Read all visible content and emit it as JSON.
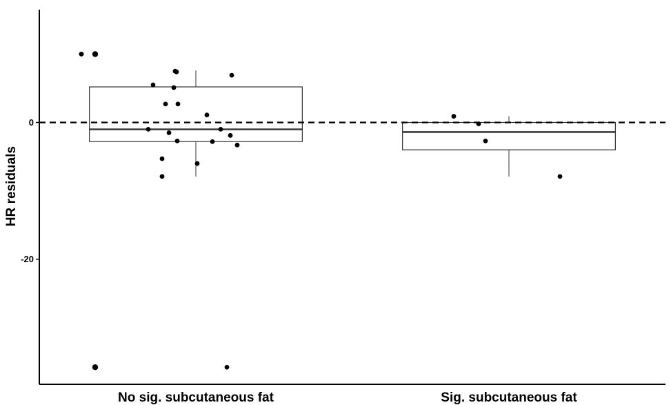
{
  "chart_data": {
    "type": "box",
    "ylabel": "HR residuals",
    "xlabel": "",
    "ylim": [
      -38.3,
      16.5
    ],
    "yticks": [
      0,
      -20
    ],
    "ytick_labels": [
      "0",
      "-20"
    ],
    "reference_line": 0,
    "grid": false,
    "legend": "none",
    "categories": [
      "No sig. subcutaneous fat",
      "Sig. subcutaneous fat"
    ],
    "boxes": [
      {
        "category": "No sig. subcutaneous fat",
        "min": -7.9,
        "q1": -2.8,
        "median": -1.0,
        "q3": 5.2,
        "max": 7.6,
        "outliers": [
          10.0,
          -35.8
        ]
      },
      {
        "category": "Sig. subcutaneous fat",
        "min": -7.9,
        "q1": -4.0,
        "median": -1.4,
        "q3": 0.0,
        "max": 0.9,
        "outliers": []
      }
    ],
    "points": [
      {
        "category": "No sig. subcutaneous fat",
        "values": [
          10.0,
          10.0,
          7.5,
          7.4,
          6.9,
          5.5,
          5.1,
          2.7,
          2.7,
          1.1,
          -1.0,
          -1.5,
          -1.0,
          -2.7,
          -1.9,
          -2.8,
          -3.3,
          -5.3,
          -6.0,
          -7.9,
          -35.8
        ]
      },
      {
        "category": "Sig. subcutaneous fat",
        "values": [
          0.9,
          -0.2,
          -2.7,
          -7.9
        ]
      }
    ]
  }
}
